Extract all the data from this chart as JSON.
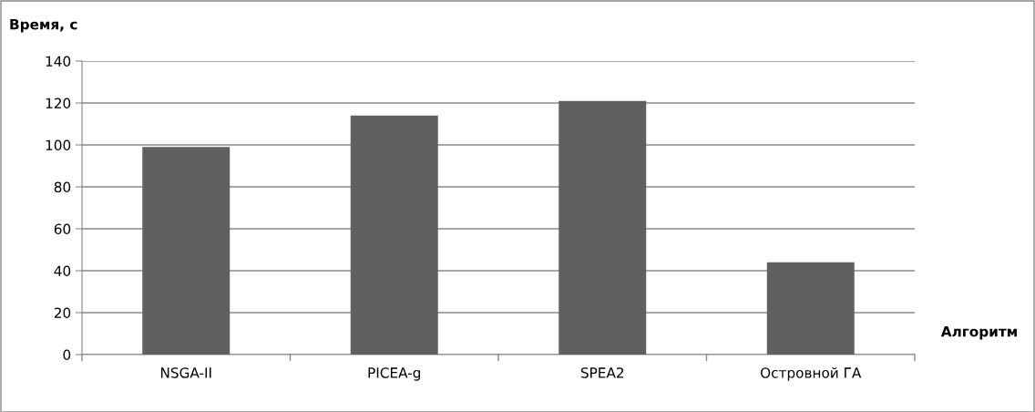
{
  "chart_data": {
    "type": "bar",
    "ylabel": "Время, с",
    "xlabel": "Алгоритм",
    "categories": [
      "NSGA-II",
      "PICEA-g",
      "SPEA2",
      "Островной ГА"
    ],
    "values": [
      99,
      114,
      121,
      44
    ],
    "color": "#606060",
    "ylim": [
      0,
      140
    ],
    "yticks": [
      0,
      20,
      40,
      60,
      80,
      100,
      120,
      140
    ],
    "grid": "y",
    "legend": false
  }
}
